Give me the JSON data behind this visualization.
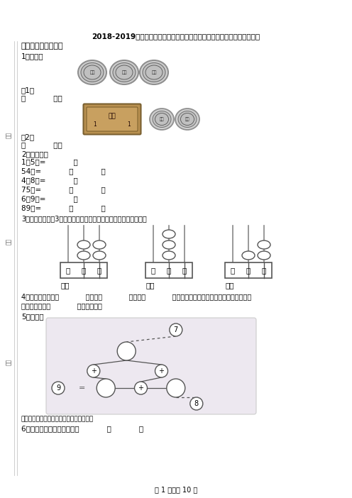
{
  "title": "2018-2019年重庆市南川区隆化第三小学校一年级下册数学期末测试含答案",
  "section1": "一、想一想，填一填",
  "q1_label": "1．填空．",
  "q1_1_label": "（1）",
  "q1_1_text": "共            分．",
  "q1_2_label": "（2）",
  "q1_2_text": "共            角．",
  "q2_label": "2．我会算。",
  "q2_lines": [
    "1元5角=            角",
    "54角=            元            角",
    "4角8分=            分",
    "75分=            角            分",
    "6元9角=            角",
    "89角=            元            角"
  ],
  "q3_label": "3．在计数器上用3颗珠子表示不同的两位数，请你写出这几个数。",
  "q3_abacus_labels": [
    "百",
    "十",
    "个"
  ],
  "q3_write_labels": [
    "写作",
    "写作",
    "写作"
  ],
  "q4_line1": "4．常用的统计图有            统计图，            统计图，            统计图，如果要表示各部分数量与总数之间",
  "q4_line2": "的关系，可以用            统计图表示。",
  "q5_label": "5．填数．",
  "q6_label": "6．和万位相邻的两个数位是            和            。",
  "page_footer": "第 1 页，共 10 页",
  "bg_color": "#ffffff",
  "tree_bg": "#ede8f0",
  "coin_color": "#b8b8b8",
  "coin_edge": "#888888",
  "banknote_color": "#b89050",
  "banknote_edge": "#7a6030"
}
